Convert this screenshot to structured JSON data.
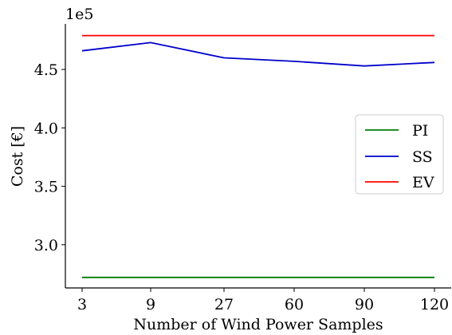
{
  "chart_data": {
    "type": "line",
    "categories": [
      "3",
      "9",
      "27",
      "60",
      "90",
      "120"
    ],
    "xlabel": "Number of Wind Power Samples",
    "ylabel": "Cost [€]",
    "y_exponent_label": "1e5",
    "ylim": [
      2.63,
      4.89
    ],
    "yticks": [
      {
        "value": 3.0,
        "label": "3.0"
      },
      {
        "value": 3.5,
        "label": "3.5"
      },
      {
        "value": 4.0,
        "label": "4.0"
      },
      {
        "value": 4.5,
        "label": "4.5"
      }
    ],
    "grid": false,
    "legend_position": "right",
    "series": [
      {
        "name": "PI",
        "color": "#008000",
        "values": [
          2.72,
          2.72,
          2.72,
          2.72,
          2.72,
          2.72
        ]
      },
      {
        "name": "SS",
        "color": "#0000cc",
        "values": [
          4.66,
          4.73,
          4.6,
          4.57,
          4.53,
          4.56
        ]
      },
      {
        "name": "EV",
        "color": "#ff0000",
        "values": [
          4.79,
          4.79,
          4.79,
          4.79,
          4.79,
          4.79
        ]
      }
    ]
  }
}
